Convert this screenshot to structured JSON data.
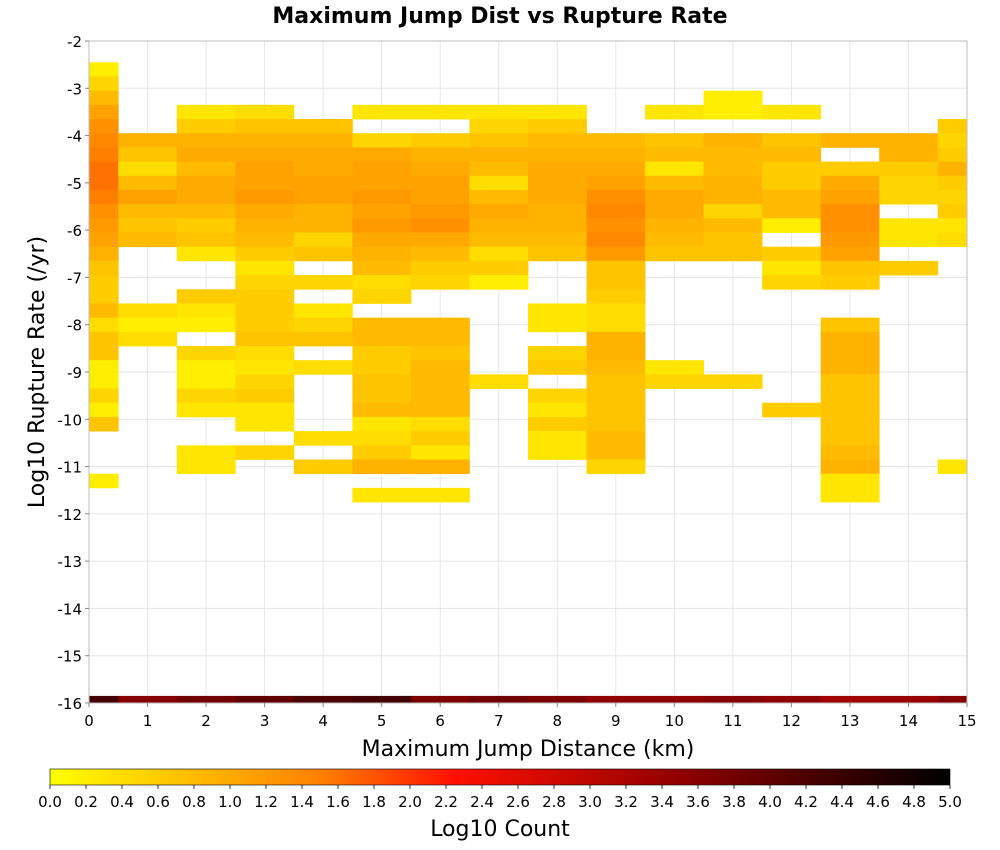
{
  "chart_data": {
    "type": "heatmap",
    "title": "Maximum Jump Dist vs Rupture Rate",
    "xlabel": "Maximum Jump Distance (km)",
    "ylabel": "Log10 Rupture Rate (/yr)",
    "xlim": [
      0,
      15
    ],
    "ylim": [
      -16,
      -2
    ],
    "x_ticks": [
      0,
      1,
      2,
      3,
      4,
      5,
      6,
      7,
      8,
      9,
      10,
      11,
      12,
      13,
      14,
      15
    ],
    "y_ticks": [
      -16,
      -15,
      -14,
      -13,
      -12,
      -11,
      -10,
      -9,
      -8,
      -7,
      -6,
      -5,
      -4,
      -3,
      -2
    ],
    "x_bin_width": 1,
    "y_bin_width": 0.3,
    "grid": true,
    "colorbar": {
      "label": "Log10 Count",
      "range": [
        0,
        5
      ],
      "ticks": [
        "0.0",
        "0.2",
        "0.4",
        "0.6",
        "0.8",
        "1.0",
        "1.2",
        "1.4",
        "1.6",
        "1.8",
        "2.0",
        "2.2",
        "2.4",
        "2.6",
        "2.8",
        "3.0",
        "3.2",
        "3.4",
        "3.6",
        "3.8",
        "4.0",
        "4.2",
        "4.4",
        "4.6",
        "4.8",
        "5.0"
      ],
      "colors": [
        "#ffff00",
        "#ff7f00",
        "#ff0000",
        "#800000",
        "#000000"
      ],
      "placement": "bottom"
    },
    "columns": [
      {
        "x": 0,
        "cells": [
          [
            -2.6,
            0.2
          ],
          [
            -2.9,
            0.5
          ],
          [
            -3.2,
            0.8
          ],
          [
            -3.5,
            1.1
          ],
          [
            -3.8,
            1.3
          ],
          [
            -4.1,
            1.4
          ],
          [
            -4.4,
            1.5
          ],
          [
            -4.7,
            1.6
          ],
          [
            -5.0,
            1.6
          ],
          [
            -5.3,
            1.5
          ],
          [
            -5.6,
            1.3
          ],
          [
            -5.9,
            1.2
          ],
          [
            -6.2,
            1.1
          ],
          [
            -6.5,
            0.9
          ],
          [
            -6.8,
            0.7
          ],
          [
            -7.1,
            0.6
          ],
          [
            -7.4,
            0.6
          ],
          [
            -7.7,
            0.8
          ],
          [
            -8.0,
            0.4
          ],
          [
            -8.3,
            0.7
          ],
          [
            -8.6,
            0.7
          ],
          [
            -8.9,
            0.2
          ],
          [
            -9.2,
            0.2
          ],
          [
            -9.5,
            0.5
          ],
          [
            -9.8,
            0.2
          ],
          [
            -10.1,
            0.7
          ],
          [
            -11.3,
            0.2
          ]
        ]
      },
      {
        "x": 1,
        "cells": [
          [
            -4.1,
            0.9
          ],
          [
            -4.4,
            0.7
          ],
          [
            -4.7,
            0.4
          ],
          [
            -5.0,
            0.8
          ],
          [
            -5.3,
            1.1
          ],
          [
            -5.6,
            0.8
          ],
          [
            -5.9,
            0.7
          ],
          [
            -6.2,
            0.8
          ],
          [
            -7.7,
            0.4
          ],
          [
            -8.0,
            0.2
          ],
          [
            -8.3,
            0.4
          ]
        ]
      },
      {
        "x": 2,
        "cells": [
          [
            -3.5,
            0.3
          ],
          [
            -3.8,
            0.6
          ],
          [
            -4.1,
            0.9
          ],
          [
            -4.4,
            1.0
          ],
          [
            -4.7,
            0.8
          ],
          [
            -5.0,
            1.0
          ],
          [
            -5.3,
            1.0
          ],
          [
            -5.6,
            0.8
          ],
          [
            -5.9,
            0.6
          ],
          [
            -6.2,
            0.7
          ],
          [
            -6.5,
            0.3
          ],
          [
            -7.4,
            0.6
          ],
          [
            -7.7,
            0.3
          ],
          [
            -8.0,
            0.2
          ],
          [
            -8.6,
            0.5
          ],
          [
            -8.9,
            0.2
          ],
          [
            -9.2,
            0.2
          ],
          [
            -9.5,
            0.5
          ],
          [
            -9.8,
            0.3
          ],
          [
            -10.7,
            0.3
          ],
          [
            -11.0,
            0.3
          ]
        ]
      },
      {
        "x": 3,
        "cells": [
          [
            -3.5,
            0.4
          ],
          [
            -3.8,
            0.7
          ],
          [
            -4.1,
            0.9
          ],
          [
            -4.4,
            1.0
          ],
          [
            -4.7,
            1.1
          ],
          [
            -5.0,
            1.1
          ],
          [
            -5.3,
            1.2
          ],
          [
            -5.6,
            1.0
          ],
          [
            -5.9,
            0.9
          ],
          [
            -6.2,
            0.8
          ],
          [
            -6.5,
            0.6
          ],
          [
            -6.8,
            0.3
          ],
          [
            -7.1,
            0.5
          ],
          [
            -7.4,
            0.6
          ],
          [
            -7.7,
            0.6
          ],
          [
            -8.0,
            0.6
          ],
          [
            -8.3,
            0.7
          ],
          [
            -8.6,
            0.4
          ],
          [
            -8.9,
            0.3
          ],
          [
            -9.2,
            0.5
          ],
          [
            -9.5,
            0.6
          ],
          [
            -9.8,
            0.3
          ],
          [
            -10.1,
            0.3
          ],
          [
            -10.7,
            0.5
          ]
        ]
      },
      {
        "x": 4,
        "cells": [
          [
            -3.8,
            0.7
          ],
          [
            -4.1,
            0.9
          ],
          [
            -4.4,
            1.0
          ],
          [
            -4.7,
            1.0
          ],
          [
            -5.0,
            1.1
          ],
          [
            -5.3,
            1.1
          ],
          [
            -5.6,
            0.9
          ],
          [
            -5.9,
            0.9
          ],
          [
            -6.2,
            0.5
          ],
          [
            -6.5,
            0.7
          ],
          [
            -7.1,
            0.5
          ],
          [
            -7.7,
            0.3
          ],
          [
            -8.0,
            0.5
          ],
          [
            -8.3,
            0.7
          ],
          [
            -8.9,
            0.4
          ],
          [
            -10.4,
            0.4
          ],
          [
            -11.0,
            0.6
          ]
        ]
      },
      {
        "x": 5,
        "cells": [
          [
            -3.5,
            0.3
          ],
          [
            -4.1,
            0.5
          ],
          [
            -4.4,
            1.0
          ],
          [
            -4.7,
            1.1
          ],
          [
            -5.0,
            1.1
          ],
          [
            -5.3,
            1.2
          ],
          [
            -5.6,
            1.1
          ],
          [
            -5.9,
            1.2
          ],
          [
            -6.2,
            1.0
          ],
          [
            -6.5,
            0.9
          ],
          [
            -6.8,
            0.8
          ],
          [
            -7.1,
            0.4
          ],
          [
            -7.4,
            0.5
          ],
          [
            -8.0,
            0.8
          ],
          [
            -8.3,
            0.8
          ],
          [
            -8.6,
            0.6
          ],
          [
            -8.9,
            0.6
          ],
          [
            -9.2,
            0.7
          ],
          [
            -9.5,
            0.7
          ],
          [
            -9.8,
            0.8
          ],
          [
            -10.1,
            0.3
          ],
          [
            -10.4,
            0.4
          ],
          [
            -10.7,
            0.6
          ],
          [
            -11.0,
            0.9
          ],
          [
            -11.6,
            0.3
          ]
        ]
      },
      {
        "x": 6,
        "cells": [
          [
            -3.5,
            0.3
          ],
          [
            -4.1,
            0.6
          ],
          [
            -4.4,
            0.9
          ],
          [
            -4.7,
            1.0
          ],
          [
            -5.0,
            1.1
          ],
          [
            -5.3,
            1.1
          ],
          [
            -5.6,
            1.2
          ],
          [
            -5.9,
            1.3
          ],
          [
            -6.2,
            1.0
          ],
          [
            -6.5,
            0.8
          ],
          [
            -6.8,
            0.6
          ],
          [
            -7.1,
            0.5
          ],
          [
            -8.0,
            0.8
          ],
          [
            -8.3,
            0.8
          ],
          [
            -8.6,
            0.7
          ],
          [
            -8.9,
            0.8
          ],
          [
            -9.2,
            0.8
          ],
          [
            -9.5,
            0.8
          ],
          [
            -9.8,
            0.8
          ],
          [
            -10.1,
            0.4
          ],
          [
            -10.4,
            0.6
          ],
          [
            -10.7,
            0.3
          ],
          [
            -11.0,
            0.9
          ],
          [
            -11.6,
            0.3
          ]
        ]
      },
      {
        "x": 7,
        "cells": [
          [
            -3.5,
            0.3
          ],
          [
            -3.8,
            0.5
          ],
          [
            -4.1,
            0.7
          ],
          [
            -4.4,
            0.9
          ],
          [
            -4.7,
            0.8
          ],
          [
            -5.0,
            0.4
          ],
          [
            -5.3,
            0.8
          ],
          [
            -5.6,
            1.0
          ],
          [
            -5.9,
            0.9
          ],
          [
            -6.2,
            0.8
          ],
          [
            -6.5,
            0.4
          ],
          [
            -6.8,
            0.6
          ],
          [
            -7.1,
            0.2
          ],
          [
            -9.2,
            0.4
          ]
        ]
      },
      {
        "x": 8,
        "cells": [
          [
            -3.5,
            0.3
          ],
          [
            -3.8,
            0.6
          ],
          [
            -4.1,
            0.8
          ],
          [
            -4.4,
            0.9
          ],
          [
            -4.7,
            1.0
          ],
          [
            -5.0,
            1.0
          ],
          [
            -5.3,
            1.0
          ],
          [
            -5.6,
            0.9
          ],
          [
            -5.9,
            0.9
          ],
          [
            -6.2,
            0.8
          ],
          [
            -6.5,
            0.7
          ],
          [
            -7.7,
            0.3
          ],
          [
            -8.0,
            0.3
          ],
          [
            -8.6,
            0.5
          ],
          [
            -8.9,
            0.6
          ],
          [
            -9.5,
            0.5
          ],
          [
            -9.8,
            0.3
          ],
          [
            -10.1,
            0.6
          ],
          [
            -10.4,
            0.3
          ],
          [
            -10.7,
            0.3
          ]
        ]
      },
      {
        "x": 9,
        "cells": [
          [
            -4.1,
            0.8
          ],
          [
            -4.4,
            0.9
          ],
          [
            -4.7,
            1.0
          ],
          [
            -5.0,
            1.1
          ],
          [
            -5.3,
            1.3
          ],
          [
            -5.6,
            1.4
          ],
          [
            -5.9,
            1.3
          ],
          [
            -6.2,
            1.4
          ],
          [
            -6.5,
            1.2
          ],
          [
            -6.8,
            0.7
          ],
          [
            -7.1,
            0.7
          ],
          [
            -7.4,
            0.6
          ],
          [
            -7.7,
            0.4
          ],
          [
            -8.0,
            0.4
          ],
          [
            -8.3,
            0.9
          ],
          [
            -8.6,
            0.9
          ],
          [
            -8.9,
            0.8
          ],
          [
            -9.2,
            0.7
          ],
          [
            -9.5,
            0.7
          ],
          [
            -9.8,
            0.7
          ],
          [
            -10.1,
            0.7
          ],
          [
            -10.4,
            0.8
          ],
          [
            -10.7,
            0.8
          ],
          [
            -11.0,
            0.5
          ]
        ]
      },
      {
        "x": 10,
        "cells": [
          [
            -3.5,
            0.3
          ],
          [
            -4.1,
            0.7
          ],
          [
            -4.4,
            0.8
          ],
          [
            -4.7,
            0.3
          ],
          [
            -5.0,
            0.8
          ],
          [
            -5.3,
            1.0
          ],
          [
            -5.6,
            1.0
          ],
          [
            -5.9,
            0.9
          ],
          [
            -6.2,
            0.8
          ],
          [
            -6.5,
            0.7
          ],
          [
            -8.9,
            0.3
          ],
          [
            -9.2,
            0.5
          ]
        ]
      },
      {
        "x": 11,
        "cells": [
          [
            -3.2,
            0.2
          ],
          [
            -3.5,
            0.2
          ],
          [
            -4.1,
            0.9
          ],
          [
            -4.4,
            0.8
          ],
          [
            -4.7,
            0.8
          ],
          [
            -5.0,
            0.9
          ],
          [
            -5.3,
            0.9
          ],
          [
            -5.6,
            0.5
          ],
          [
            -5.9,
            0.8
          ],
          [
            -6.2,
            0.7
          ],
          [
            -6.5,
            0.7
          ],
          [
            -9.2,
            0.5
          ]
        ]
      },
      {
        "x": 12,
        "cells": [
          [
            -3.5,
            0.3
          ],
          [
            -4.1,
            0.7
          ],
          [
            -4.4,
            0.8
          ],
          [
            -4.7,
            0.6
          ],
          [
            -5.0,
            0.6
          ],
          [
            -5.3,
            0.8
          ],
          [
            -5.6,
            0.8
          ],
          [
            -5.9,
            0.2
          ],
          [
            -6.5,
            0.6
          ],
          [
            -6.8,
            0.3
          ],
          [
            -7.1,
            0.5
          ],
          [
            -9.8,
            0.6
          ]
        ]
      },
      {
        "x": 13,
        "cells": [
          [
            -4.1,
            0.9
          ],
          [
            -4.7,
            0.6
          ],
          [
            -5.0,
            1.0
          ],
          [
            -5.3,
            1.1
          ],
          [
            -5.6,
            1.3
          ],
          [
            -5.9,
            1.3
          ],
          [
            -6.2,
            1.2
          ],
          [
            -6.5,
            1.1
          ],
          [
            -6.8,
            0.7
          ],
          [
            -7.1,
            0.6
          ],
          [
            -8.0,
            0.7
          ],
          [
            -8.3,
            0.9
          ],
          [
            -8.6,
            0.9
          ],
          [
            -8.9,
            0.9
          ],
          [
            -9.2,
            0.7
          ],
          [
            -9.5,
            0.7
          ],
          [
            -9.8,
            0.7
          ],
          [
            -10.1,
            0.7
          ],
          [
            -10.4,
            0.7
          ],
          [
            -10.7,
            0.8
          ],
          [
            -11.0,
            0.9
          ],
          [
            -11.3,
            0.3
          ],
          [
            -11.6,
            0.3
          ]
        ]
      },
      {
        "x": 14,
        "cells": [
          [
            -4.1,
            0.9
          ],
          [
            -4.4,
            0.9
          ],
          [
            -4.7,
            0.6
          ],
          [
            -5.0,
            0.5
          ],
          [
            -5.3,
            0.5
          ],
          [
            -5.9,
            0.3
          ],
          [
            -6.2,
            0.3
          ],
          [
            -6.8,
            0.6
          ]
        ]
      },
      {
        "x": 15,
        "cells": [
          [
            -3.8,
            0.6
          ],
          [
            -4.1,
            0.5
          ],
          [
            -4.4,
            0.6
          ],
          [
            -4.7,
            0.9
          ],
          [
            -5.0,
            0.6
          ],
          [
            -5.3,
            0.5
          ],
          [
            -5.6,
            0.6
          ],
          [
            -5.9,
            0.3
          ],
          [
            -6.2,
            0.4
          ],
          [
            -11.0,
            0.3
          ]
        ]
      }
    ],
    "bottom_row": {
      "y": -16.0,
      "values": [
        4.3,
        3.6,
        3.8,
        4.0,
        4.2,
        4.3,
        3.7,
        3.8,
        3.7,
        3.5,
        3.5,
        3.6,
        3.5,
        3.3,
        3.4,
        3.6
      ]
    }
  }
}
